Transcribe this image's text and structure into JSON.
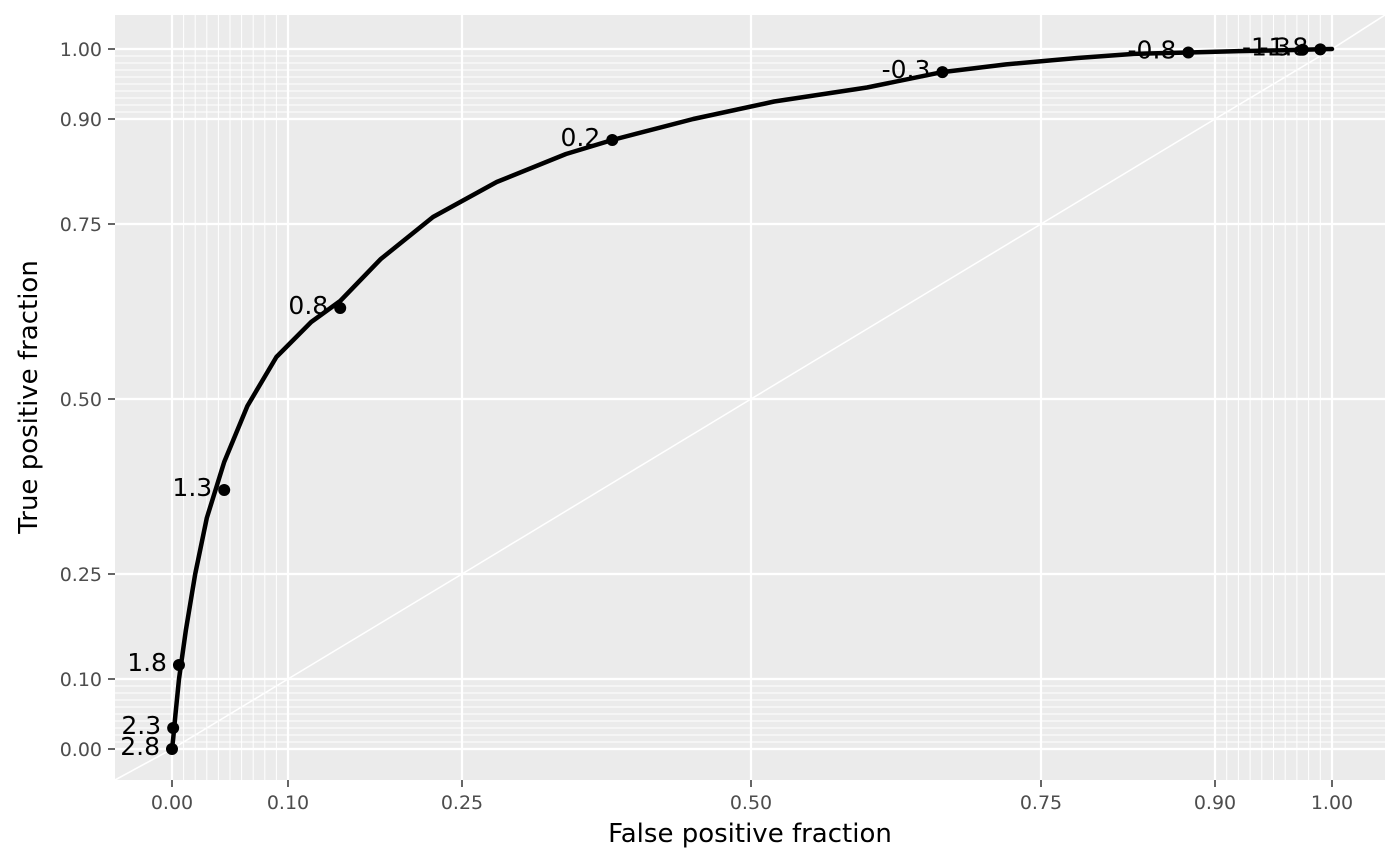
{
  "chart_data": {
    "type": "line",
    "title": "",
    "xlabel": "False positive fraction",
    "ylabel": "True positive fraction",
    "xlim": [
      -0.05,
      1.05
    ],
    "ylim": [
      -0.05,
      1.05
    ],
    "axis_scale": "probit-style stretched toward 0 and 1",
    "grid": true,
    "panel_background": "#ebebeb",
    "grid_color": "#ffffff",
    "curve_color": "#000000",
    "x_ticks": [
      0.0,
      0.1,
      0.25,
      0.5,
      0.75,
      0.9,
      1.0
    ],
    "x_tick_labels": [
      "0.00",
      "0.10",
      "0.25",
      "0.50",
      "0.75",
      "0.90",
      "1.00"
    ],
    "y_ticks": [
      0.0,
      0.1,
      0.25,
      0.5,
      0.75,
      0.9,
      1.0
    ],
    "y_tick_labels": [
      "0.00",
      "0.10",
      "0.25",
      "0.50",
      "0.75",
      "0.90",
      "1.00"
    ],
    "minor_ticks_low": [
      0.01,
      0.02,
      0.03,
      0.04,
      0.05,
      0.06,
      0.07,
      0.08,
      0.09
    ],
    "minor_ticks_high": [
      0.91,
      0.92,
      0.93,
      0.94,
      0.95,
      0.96,
      0.97,
      0.98,
      0.99
    ],
    "diagonal_reference": true,
    "series": [
      {
        "values_fpf": [
          0.0,
          0.001,
          0.003,
          0.006,
          0.012,
          0.02,
          0.03,
          0.045,
          0.065,
          0.09,
          0.12,
          0.145,
          0.18,
          0.225,
          0.28,
          0.34,
          0.38,
          0.45,
          0.52,
          0.6,
          0.665,
          0.72,
          0.78,
          0.83,
          0.877,
          0.92,
          0.955,
          0.975,
          0.99,
          1.0
        ],
        "values_tpf": [
          0.0,
          0.015,
          0.05,
          0.1,
          0.17,
          0.25,
          0.33,
          0.41,
          0.49,
          0.56,
          0.61,
          0.64,
          0.7,
          0.76,
          0.81,
          0.85,
          0.87,
          0.9,
          0.925,
          0.945,
          0.967,
          0.978,
          0.987,
          0.993,
          0.995,
          0.997,
          0.998,
          0.999,
          0.9995,
          1.0
        ]
      }
    ],
    "points": [
      {
        "fpf": 0.0,
        "tpf": 0.0,
        "label": "2.8"
      },
      {
        "fpf": 0.001,
        "tpf": 0.03,
        "label": "2.3"
      },
      {
        "fpf": 0.006,
        "tpf": 0.12,
        "label": "1.8"
      },
      {
        "fpf": 0.045,
        "tpf": 0.37,
        "label": "1.3"
      },
      {
        "fpf": 0.145,
        "tpf": 0.63,
        "label": "0.8"
      },
      {
        "fpf": 0.38,
        "tpf": 0.87,
        "label": "0.2"
      },
      {
        "fpf": 0.665,
        "tpf": 0.967,
        "label": "-0.3"
      },
      {
        "fpf": 0.877,
        "tpf": 0.995,
        "label": "-0.8"
      },
      {
        "fpf": 0.975,
        "tpf": 0.999,
        "label": "-1.3"
      },
      {
        "fpf": 0.99,
        "tpf": 0.9995,
        "label": "-1.8"
      }
    ]
  }
}
